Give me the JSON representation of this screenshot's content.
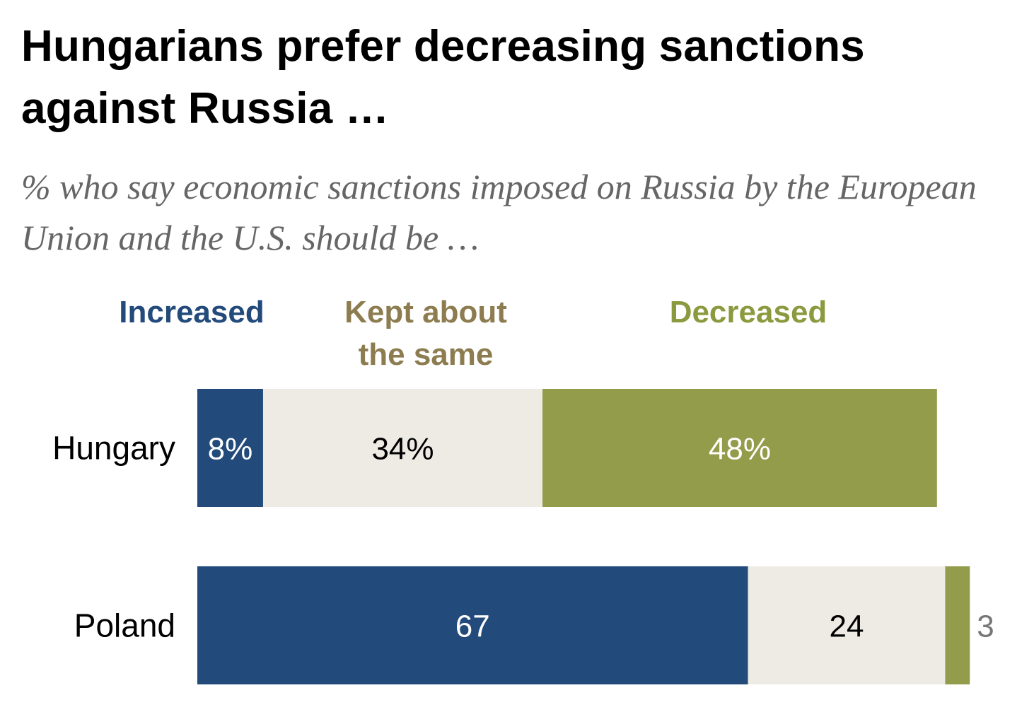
{
  "title": "Hungarians prefer decreasing sanctions against Russia …",
  "subtitle": "% who say economic sanctions imposed on Russia by the European Union and the U.S. should be …",
  "legend": [
    {
      "text": "Increased",
      "color": "#224a7a"
    },
    {
      "text": "Kept about the same",
      "color": "#8c7c4f"
    },
    {
      "text": "Decreased",
      "color": "#8b9a3e"
    }
  ],
  "chart_data": {
    "type": "bar",
    "orientation": "horizontal",
    "stacked": true,
    "title": "Hungarians prefer decreasing sanctions against Russia …",
    "subtitle": "% who say economic sanctions imposed on Russia by the European Union and the U.S. should be …",
    "categories": [
      "Hungary",
      "Poland"
    ],
    "series": [
      {
        "name": "Increased",
        "values": [
          8,
          67
        ],
        "labels": [
          "8%",
          "67"
        ],
        "color": "#224a7a",
        "text_color": "#ffffff"
      },
      {
        "name": "Kept about the same",
        "values": [
          34,
          24
        ],
        "labels": [
          "34%",
          "24"
        ],
        "color": "#edebe4",
        "text_color": "#000000"
      },
      {
        "name": "Decreased",
        "values": [
          48,
          3
        ],
        "labels": [
          "48%",
          "3"
        ],
        "color": "#939c4a",
        "text_color": "#ffffff"
      }
    ],
    "xlim": [
      0,
      100
    ],
    "grid": false,
    "legend_position": "top"
  }
}
